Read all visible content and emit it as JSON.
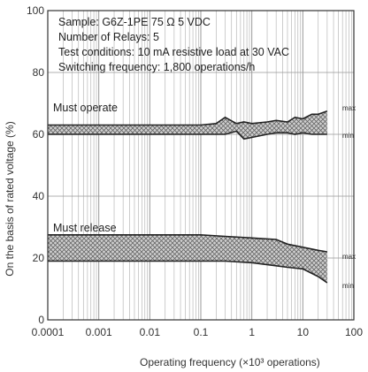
{
  "chart_data": {
    "type": "area",
    "xlabel": "Operating frequency (×10³ operations)",
    "ylabel": "On the basis of rated voltage (%)",
    "x_scale": "log",
    "xlim": [
      0.0001,
      100
    ],
    "ylim": [
      0,
      100
    ],
    "x_ticks": [
      {
        "value": 0.0001,
        "label": "0.0001"
      },
      {
        "value": 0.001,
        "label": "0.001"
      },
      {
        "value": 0.01,
        "label": "0.01"
      },
      {
        "value": 0.1,
        "label": "0.1"
      },
      {
        "value": 1,
        "label": "1"
      },
      {
        "value": 10,
        "label": "10"
      },
      {
        "value": 100,
        "label": "100"
      }
    ],
    "y_ticks": [
      {
        "value": 0,
        "label": "0"
      },
      {
        "value": 20,
        "label": "20"
      },
      {
        "value": 40,
        "label": "40"
      },
      {
        "value": 60,
        "label": "60"
      },
      {
        "value": 80,
        "label": "80"
      },
      {
        "value": 100,
        "label": "100"
      }
    ],
    "grid": true,
    "conditions": [
      "Sample: G6Z-1PE  75 Ω  5 VDC",
      "Number of Relays: 5",
      "Test conditions: 10 mA resistive load at  30 VAC",
      "Switching frequency: 1,800 operations/h"
    ],
    "series": [
      {
        "name": "Must operate",
        "max_label": "max",
        "min_label": "min",
        "x": [
          0.0001,
          0.001,
          0.01,
          0.1,
          0.2,
          0.3,
          0.5,
          0.7,
          1,
          2,
          3,
          5,
          7,
          10,
          15,
          20,
          30
        ],
        "max": [
          63,
          63,
          63,
          63,
          63.5,
          65.5,
          63.5,
          64,
          63.5,
          64,
          64.5,
          64,
          65.5,
          65,
          66.5,
          66.5,
          67.5
        ],
        "min": [
          60,
          60,
          60,
          60,
          60,
          60,
          61,
          58.5,
          59,
          60,
          60.5,
          60.5,
          60,
          60.5,
          60,
          60,
          60
        ]
      },
      {
        "name": "Must release",
        "max_label": "max",
        "min_label": "min",
        "x": [
          0.0001,
          0.001,
          0.01,
          0.1,
          0.3,
          1,
          3,
          5,
          10,
          20,
          30
        ],
        "max": [
          27.5,
          27.5,
          27.5,
          27.5,
          27,
          26.5,
          26,
          24.5,
          23.5,
          22.5,
          22
        ],
        "min": [
          19,
          19,
          19,
          19,
          19,
          18.5,
          17.5,
          17,
          16.5,
          14,
          12
        ]
      }
    ],
    "colors": {
      "band_fill": "#c8c8c8",
      "band_stroke": "#222222",
      "hatch": "#6a6a6a",
      "grid": "#b8b8b8",
      "frame": "#333333"
    }
  }
}
